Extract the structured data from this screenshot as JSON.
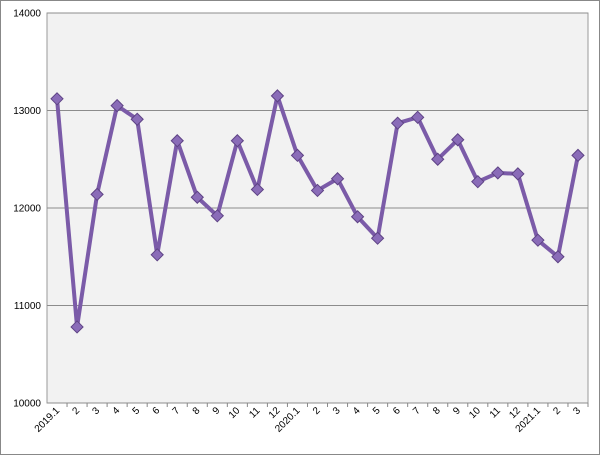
{
  "chart_data": {
    "type": "line",
    "categories": [
      "2019.1",
      "2",
      "3",
      "4",
      "5",
      "6",
      "7",
      "8",
      "9",
      "10",
      "11",
      "12",
      "2020.1",
      "2",
      "3",
      "4",
      "5",
      "6",
      "7",
      "8",
      "9",
      "10",
      "11",
      "12",
      "2021.1",
      "2",
      "3"
    ],
    "series": [
      {
        "color": "#7b5ba8",
        "values": [
          13120,
          10780,
          12140,
          13050,
          12910,
          11520,
          12690,
          12110,
          11920,
          12690,
          12190,
          13150,
          12540,
          12180,
          12300,
          11910,
          11690,
          12870,
          12930,
          12500,
          12700,
          12270,
          12360,
          12350,
          11670,
          11500,
          12540
        ]
      }
    ],
    "ylim": [
      10000,
      14000
    ],
    "yticks": [
      10000,
      11000,
      12000,
      13000,
      14000
    ],
    "grid": true
  }
}
